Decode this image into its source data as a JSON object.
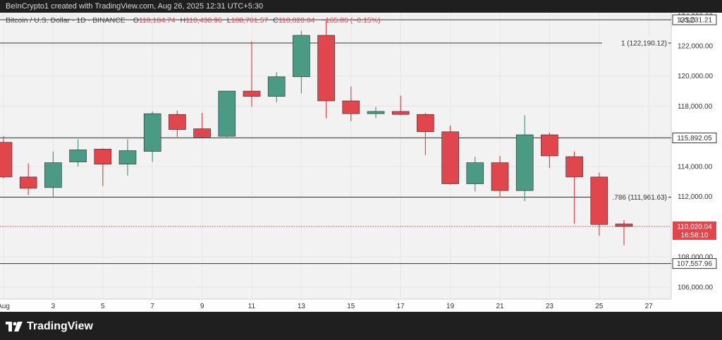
{
  "header": {
    "attribution": "BeInCrypto1 created with TradingView.com, Aug 26, 2025 12:31 UTC+5:30"
  },
  "legend": {
    "title": "Bitcoin / U.S. Dollar · 1D · BINANCE",
    "o_label": "O",
    "o": "110,184.74",
    "h_label": "H",
    "h": "110,438.96",
    "l_label": "L",
    "l": "108,761.57",
    "c_label": "C",
    "c": "110,020.04",
    "change": "−165.86 (−0.15%)"
  },
  "currency": "USD",
  "footer": {
    "brand": "TradingView"
  },
  "colors": {
    "up": "#4a9a84",
    "down": "#e1464d",
    "level": "#333333",
    "panel_bg": "#f2f2f2"
  },
  "chart_data": {
    "type": "candlestick",
    "ylim": [
      105200,
      124200
    ],
    "y_ticks": [
      106000,
      108000,
      110000,
      112000,
      114000,
      116000,
      118000,
      120000,
      122000,
      124000
    ],
    "y_tick_labels": [
      "106,000.00",
      "108,000.00",
      "110,000.00",
      "112,000.00",
      "114,000.00",
      "116,000.00",
      "118,000.00",
      "120,000.00",
      "122,000.00",
      "124,000.00"
    ],
    "x_range": [
      1,
      27.5
    ],
    "x_ticks": [
      1,
      3,
      5,
      7,
      9,
      11,
      13,
      15,
      17,
      19,
      21,
      23,
      25,
      27
    ],
    "x_tick_labels": [
      "Aug",
      "3",
      "5",
      "7",
      "9",
      "11",
      "13",
      "15",
      "17",
      "19",
      "21",
      "23",
      "25",
      "27"
    ],
    "candles": [
      {
        "x": 1,
        "o": 115600,
        "h": 116000,
        "l": 113200,
        "c": 113300
      },
      {
        "x": 2,
        "o": 113300,
        "h": 114200,
        "l": 112100,
        "c": 112550
      },
      {
        "x": 3,
        "o": 112600,
        "h": 115000,
        "l": 111950,
        "c": 114250
      },
      {
        "x": 4,
        "o": 114300,
        "h": 115800,
        "l": 114000,
        "c": 115100
      },
      {
        "x": 5,
        "o": 115150,
        "h": 115200,
        "l": 112700,
        "c": 114150
      },
      {
        "x": 6,
        "o": 114150,
        "h": 115800,
        "l": 113400,
        "c": 115050
      },
      {
        "x": 7,
        "o": 115000,
        "h": 117650,
        "l": 114300,
        "c": 117500
      },
      {
        "x": 8,
        "o": 117450,
        "h": 117700,
        "l": 115950,
        "c": 116450
      },
      {
        "x": 9,
        "o": 116500,
        "h": 117550,
        "l": 115900,
        "c": 115950
      },
      {
        "x": 10,
        "o": 116000,
        "h": 119000,
        "l": 115950,
        "c": 119000
      },
      {
        "x": 11,
        "o": 119000,
        "h": 122300,
        "l": 117950,
        "c": 118650
      },
      {
        "x": 12,
        "o": 118650,
        "h": 120250,
        "l": 118250,
        "c": 119950
      },
      {
        "x": 13,
        "o": 119950,
        "h": 123000,
        "l": 118850,
        "c": 122700
      },
      {
        "x": 14,
        "o": 122700,
        "h": 123731,
        "l": 117200,
        "c": 118350
      },
      {
        "x": 15,
        "o": 118350,
        "h": 119300,
        "l": 117000,
        "c": 117500
      },
      {
        "x": 16,
        "o": 117500,
        "h": 117950,
        "l": 117200,
        "c": 117650
      },
      {
        "x": 17,
        "o": 117650,
        "h": 118700,
        "l": 117400,
        "c": 117450
      },
      {
        "x": 18,
        "o": 117450,
        "h": 117550,
        "l": 114750,
        "c": 116300
      },
      {
        "x": 19,
        "o": 116300,
        "h": 116700,
        "l": 112800,
        "c": 112850
      },
      {
        "x": 20,
        "o": 112850,
        "h": 114650,
        "l": 112350,
        "c": 114250
      },
      {
        "x": 21,
        "o": 114250,
        "h": 114700,
        "l": 111950,
        "c": 112400
      },
      {
        "x": 22,
        "o": 112400,
        "h": 117400,
        "l": 111700,
        "c": 116100
      },
      {
        "x": 23,
        "o": 116100,
        "h": 116250,
        "l": 113900,
        "c": 114700
      },
      {
        "x": 24,
        "o": 114650,
        "h": 115000,
        "l": 110200,
        "c": 113300
      },
      {
        "x": 25,
        "o": 113300,
        "h": 113600,
        "l": 109400,
        "c": 110150
      },
      {
        "x": 26,
        "o": 110184.74,
        "h": 110438.96,
        "l": 108761.57,
        "c": 110020.04
      }
    ],
    "levels": [
      {
        "price": 123731.21,
        "price_label": "123,731.21"
      },
      {
        "price": 122190.12,
        "annotation": "1 (122,190.12)"
      },
      {
        "price": 115892.05,
        "price_label": "115,892.05"
      },
      {
        "price": 111961.63,
        "annotation": ".786 (111,961.63)"
      },
      {
        "price": 107557.96,
        "price_label": "107,557.96"
      }
    ],
    "last_price": {
      "price": 110020.04,
      "price_label": "110,020.04",
      "countdown": "16:58:10"
    }
  }
}
